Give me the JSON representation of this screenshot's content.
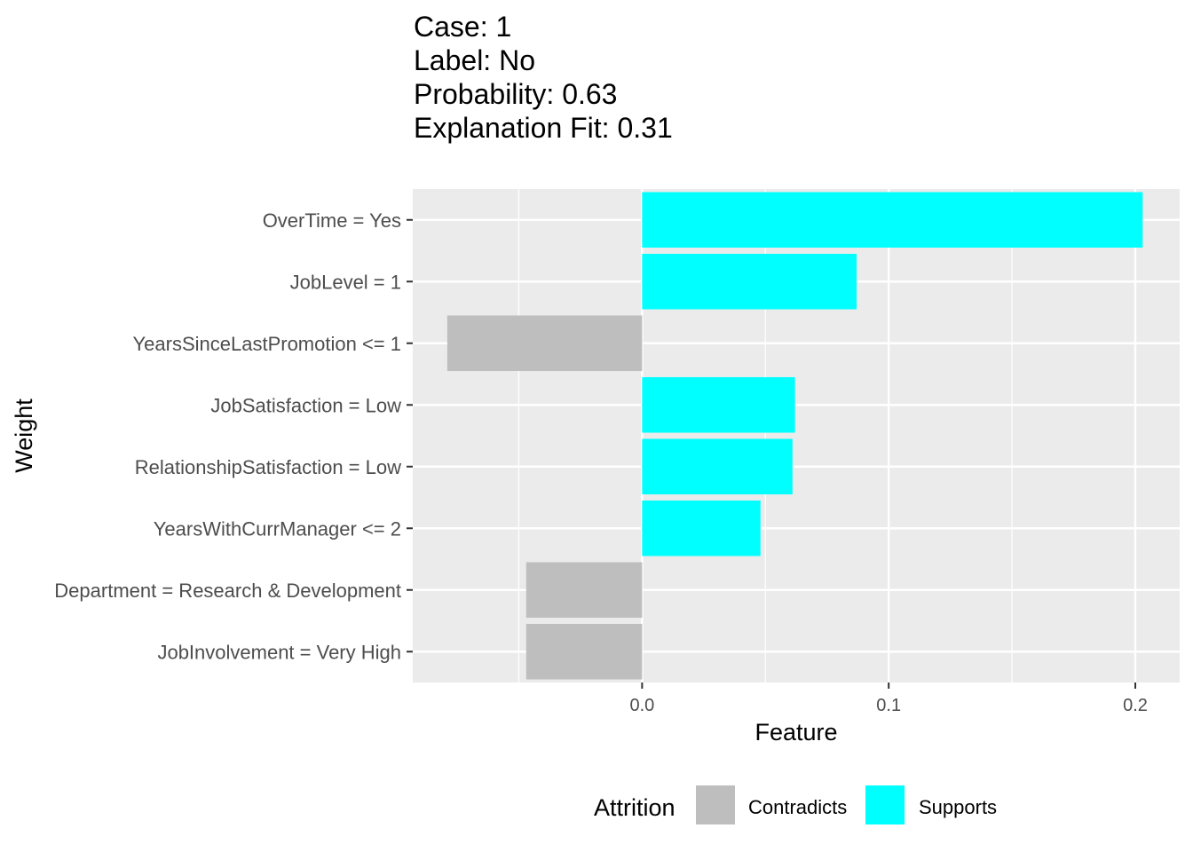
{
  "chart_data": {
    "type": "bar",
    "orientation": "horizontal",
    "title_lines": [
      "Case: 1",
      "Label: No",
      "Probability: 0.63",
      "Explanation Fit: 0.31"
    ],
    "xlabel": "Feature",
    "ylabel": "Weight",
    "categories": [
      "OverTime = Yes",
      "JobLevel = 1",
      "YearsSinceLastPromotion <= 1",
      "JobSatisfaction = Low",
      "RelationshipSatisfaction = Low",
      "YearsWithCurrManager <= 2",
      "Department = Research & Development",
      "JobInvolvement = Very High"
    ],
    "values": [
      0.203,
      0.087,
      -0.079,
      0.062,
      0.061,
      0.048,
      -0.047,
      -0.047
    ],
    "groups": [
      "Supports",
      "Supports",
      "Contradicts",
      "Supports",
      "Supports",
      "Supports",
      "Contradicts",
      "Contradicts"
    ],
    "xlim": [
      -0.093,
      0.218
    ],
    "xticks": [
      0.0,
      0.1,
      0.2
    ],
    "xtick_labels": [
      "0.0",
      "0.1",
      "0.2"
    ],
    "grid": true,
    "legend": {
      "title": "Attrition",
      "placement": "bottom",
      "entries": [
        {
          "label": "Contradicts",
          "color": "#bebebe"
        },
        {
          "label": "Supports",
          "color": "#00ffff"
        }
      ]
    },
    "colors": {
      "Contradicts": "#bebebe",
      "Supports": "#00ffff",
      "panel": "#ebebeb",
      "grid": "#ffffff"
    }
  }
}
